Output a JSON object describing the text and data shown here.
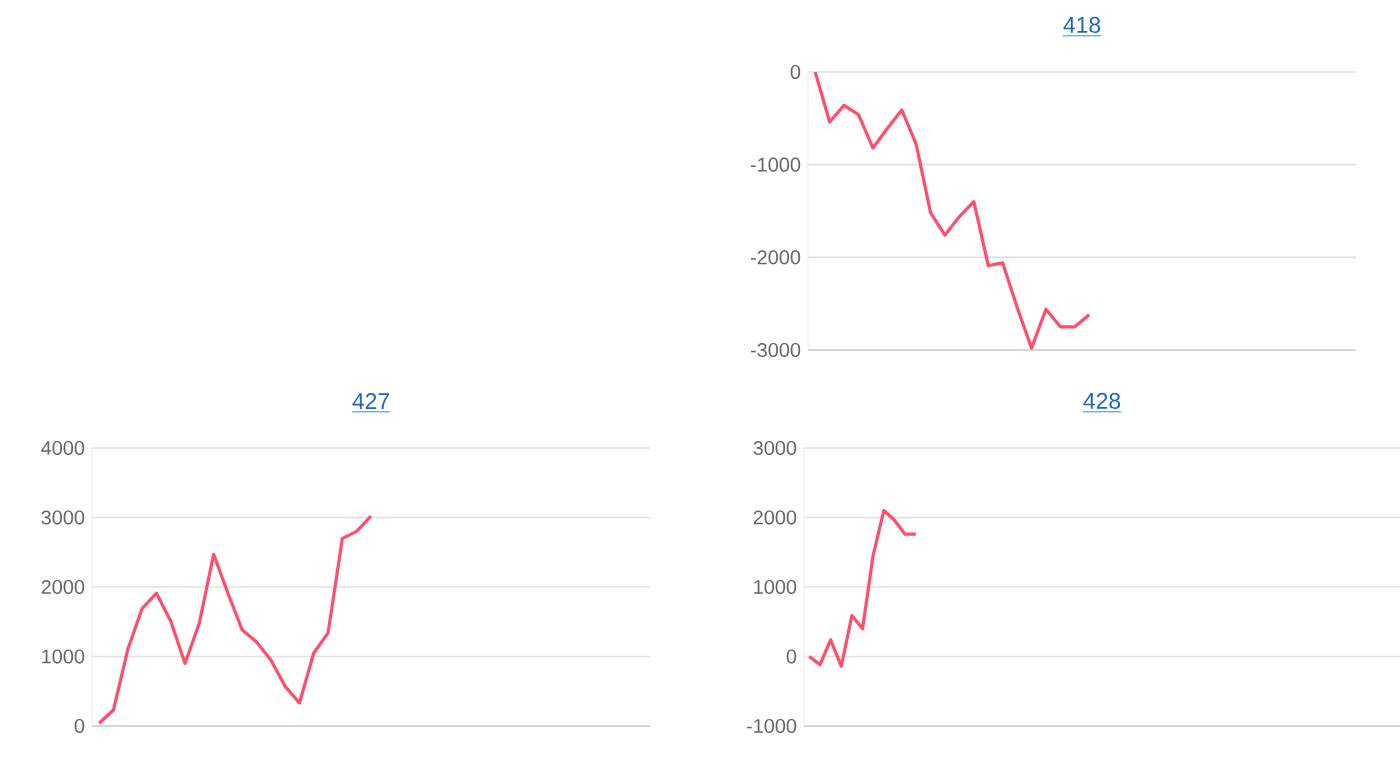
{
  "chart_data": [
    {
      "type": "line",
      "title": "418",
      "categories": [
        null,
        null,
        null,
        null,
        null,
        null,
        null,
        null,
        null,
        null,
        null,
        null,
        null,
        null,
        null,
        null,
        null,
        null,
        null,
        null,
        null,
        null,
        null,
        null,
        null,
        null,
        null,
        null,
        null,
        null,
        null,
        null,
        null,
        null,
        null,
        null,
        null,
        null
      ],
      "series": [
        {
          "color": "#ff4d6a",
          "values": [
            0,
            -540,
            -360,
            -460,
            -820,
            -610,
            -410,
            -780,
            -1520,
            -1760,
            -1560,
            -1400,
            -2090,
            -2060,
            -2540,
            -2980,
            -2560,
            -2750,
            -2750,
            -2620,
            null,
            null,
            null,
            null,
            null,
            null,
            null,
            null,
            null,
            null,
            null,
            null,
            null,
            null,
            null,
            null,
            null,
            null
          ]
        }
      ],
      "ylim": [
        -3000,
        0
      ],
      "yticks": [
        -3000,
        -2000,
        -1000,
        0
      ],
      "grid": "y",
      "tick_labels": "y"
    },
    {
      "type": "line",
      "title": "427",
      "categories": [
        null,
        null,
        null,
        null,
        null,
        null,
        null,
        null,
        null,
        null,
        null,
        null,
        null,
        null,
        null,
        null,
        null,
        null,
        null,
        null,
        null,
        null,
        null,
        null,
        null,
        null,
        null,
        null,
        null,
        null,
        null,
        null,
        null,
        null,
        null,
        null,
        null,
        null,
        null
      ],
      "series": [
        {
          "color": "#ff4d6a",
          "values": [
            40,
            230,
            1100,
            1690,
            1910,
            1510,
            900,
            1480,
            2470,
            1910,
            1380,
            1210,
            950,
            570,
            330,
            1050,
            1340,
            2700,
            2800,
            3020,
            null,
            null,
            null,
            null,
            null,
            null,
            null,
            null,
            null,
            null,
            null,
            null,
            null,
            null,
            null,
            null,
            null,
            null,
            null
          ]
        }
      ],
      "ylim": [
        0,
        4000
      ],
      "yticks": [
        0,
        1000,
        2000,
        3000,
        4000
      ],
      "grid": "y",
      "tick_labels": "y"
    },
    {
      "type": "line",
      "title": "428",
      "categories": [
        null,
        null,
        null,
        null,
        null,
        null,
        null,
        null,
        null,
        null,
        null,
        null,
        null,
        null,
        null,
        null,
        null,
        null,
        null,
        null,
        null,
        null,
        null,
        null,
        null,
        null,
        null,
        null,
        null,
        null,
        null,
        null,
        null,
        null,
        null,
        null,
        null,
        null,
        null,
        null,
        null,
        null,
        null,
        null,
        null,
        null,
        null,
        null,
        null,
        null,
        null,
        null,
        null,
        null,
        null,
        null
      ],
      "series": [
        {
          "color": "#ff4d6a",
          "values": [
            0,
            -120,
            240,
            -140,
            590,
            400,
            1460,
            2100,
            1960,
            1760,
            1760,
            null,
            null,
            null,
            null,
            null,
            null,
            null,
            null,
            null,
            null,
            null,
            null,
            null,
            null,
            null,
            null,
            null,
            null,
            null,
            null,
            null,
            null,
            null,
            null,
            null,
            null,
            null,
            null,
            null,
            null,
            null,
            null,
            null,
            null,
            null,
            null,
            null,
            null,
            null,
            null,
            null,
            null,
            null,
            null,
            null
          ]
        }
      ],
      "ylim": [
        -1000,
        3000
      ],
      "yticks": [
        -1000,
        0,
        1000,
        2000,
        3000
      ],
      "grid": "y",
      "tick_labels": "y"
    }
  ]
}
